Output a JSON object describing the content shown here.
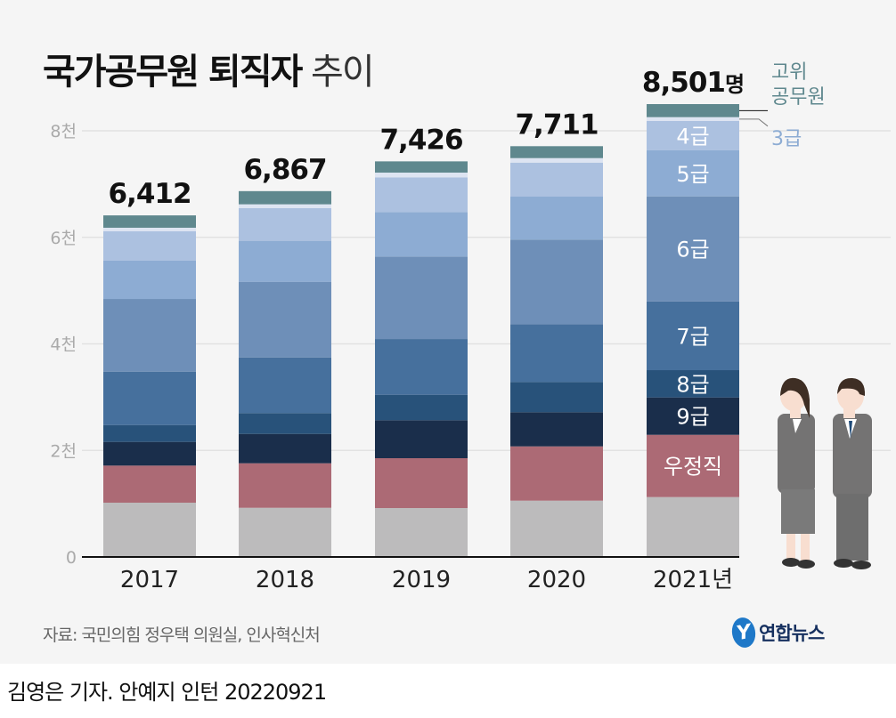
{
  "title": {
    "bold": "국가공무원 퇴직자",
    "regular": "추이"
  },
  "source": "자료: 국민의힘 정우택 의원실, 인사혁신처",
  "logo_text": "연합뉴스",
  "credit": "김영은 기자. 안예지 인턴  20220921",
  "chart_data": {
    "type": "bar",
    "stacked": true,
    "categories": [
      "2017",
      "2018",
      "2019",
      "2020",
      "2021년"
    ],
    "totals": [
      6412,
      6867,
      7426,
      7711,
      8501
    ],
    "total_labels": [
      "6,412",
      "6,867",
      "7,426",
      "7,711",
      "8,501"
    ],
    "total_unit": "명",
    "yticks": [
      0,
      2000,
      4000,
      6000,
      8000
    ],
    "ytick_labels": [
      "0",
      "2천",
      "4천",
      "6천",
      "8천"
    ],
    "ylim": [
      0,
      8000
    ],
    "grid": true,
    "series": [
      {
        "name": "",
        "color": "#bcbbbc",
        "values": [
          1019,
          923,
          918,
          1057,
          1124
        ]
      },
      {
        "name": "우정직",
        "color": "#ac6a75",
        "values": [
          696,
          836,
          936,
          1019,
          1169
        ]
      },
      {
        "name": "9급",
        "color": "#1a2e4b",
        "values": [
          445,
          551,
          713,
          641,
          702
        ]
      },
      {
        "name": "8급",
        "color": "#28527a",
        "values": [
          317,
          390,
          478,
          567,
          512
        ]
      },
      {
        "name": "7급",
        "color": "#46709d",
        "values": [
          1002,
          1046,
          1046,
          1086,
          1291
        ]
      },
      {
        "name": "6급",
        "color": "#6e8fb8",
        "values": [
          1364,
          1420,
          1549,
          1588,
          1971
        ]
      },
      {
        "name": "5급",
        "color": "#8dacd3",
        "values": [
          724,
          769,
          835,
          806,
          864
        ]
      },
      {
        "name": "4급",
        "color": "#acc1e0",
        "values": [
          546,
          613,
          651,
          639,
          551
        ]
      },
      {
        "name": "3급",
        "color": "#dde4f2",
        "label_color": "#8dacd3",
        "values": [
          67,
          72,
          89,
          84,
          72
        ]
      },
      {
        "name": "고위\n공무원",
        "color": "#5f888e",
        "label_color": "#5f888e",
        "values": [
          232,
          247,
          211,
          224,
          245
        ]
      }
    ],
    "inside_labels": [
      "우정직",
      "9급",
      "8급",
      "7급",
      "6급",
      "5급",
      "4급"
    ],
    "outside_labels": [
      "3급",
      "고위\n공무원"
    ]
  }
}
